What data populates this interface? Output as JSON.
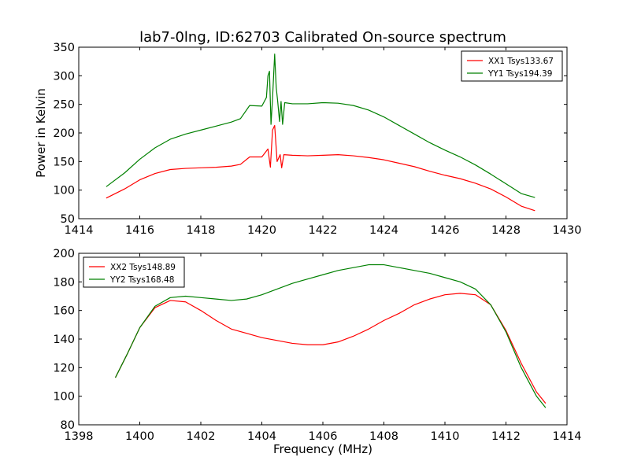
{
  "figure": {
    "title": "lab7-0lng, ID:62703 Calibrated On-source spectrum"
  },
  "chart_data": [
    {
      "type": "line",
      "xlabel": "",
      "ylabel": "Power in Kelvin",
      "xlim": [
        1414,
        1430
      ],
      "ylim": [
        50,
        350
      ],
      "xticks": [
        1414,
        1416,
        1418,
        1420,
        1422,
        1424,
        1426,
        1428,
        1430
      ],
      "yticks": [
        50,
        100,
        150,
        200,
        250,
        300,
        350
      ],
      "grid": false,
      "legend_position": "top-right",
      "series": [
        {
          "name": "XX1 Tsys133.67",
          "color": "#ff0000",
          "points": [
            [
              1414.9,
              86
            ],
            [
              1415.5,
              102
            ],
            [
              1416.0,
              118
            ],
            [
              1416.5,
              129
            ],
            [
              1417.0,
              136
            ],
            [
              1417.5,
              138
            ],
            [
              1418.0,
              139
            ],
            [
              1418.5,
              140
            ],
            [
              1419.0,
              142
            ],
            [
              1419.3,
              145
            ],
            [
              1419.6,
              158
            ],
            [
              1420.0,
              158
            ],
            [
              1420.2,
              172
            ],
            [
              1420.28,
              140
            ],
            [
              1420.35,
              205
            ],
            [
              1420.42,
              213
            ],
            [
              1420.5,
              150
            ],
            [
              1420.6,
              162
            ],
            [
              1420.65,
              139
            ],
            [
              1420.72,
              162
            ],
            [
              1421.0,
              161
            ],
            [
              1421.5,
              160
            ],
            [
              1422.0,
              161
            ],
            [
              1422.5,
              162
            ],
            [
              1423.0,
              160
            ],
            [
              1423.5,
              157
            ],
            [
              1424.0,
              153
            ],
            [
              1424.5,
              147
            ],
            [
              1425.0,
              141
            ],
            [
              1425.5,
              133
            ],
            [
              1426.0,
              126
            ],
            [
              1426.5,
              120
            ],
            [
              1427.0,
              112
            ],
            [
              1427.5,
              102
            ],
            [
              1428.0,
              88
            ],
            [
              1428.5,
              72
            ],
            [
              1428.95,
              64
            ]
          ]
        },
        {
          "name": "YY1 Tsys194.39",
          "color": "#008000",
          "points": [
            [
              1414.9,
              106
            ],
            [
              1415.5,
              130
            ],
            [
              1416.0,
              154
            ],
            [
              1416.5,
              174
            ],
            [
              1417.0,
              189
            ],
            [
              1417.5,
              198
            ],
            [
              1418.0,
              205
            ],
            [
              1418.5,
              212
            ],
            [
              1419.0,
              219
            ],
            [
              1419.3,
              225
            ],
            [
              1419.6,
              248
            ],
            [
              1420.0,
              247
            ],
            [
              1420.15,
              262
            ],
            [
              1420.2,
              300
            ],
            [
              1420.25,
              308
            ],
            [
              1420.3,
              215
            ],
            [
              1420.35,
              260
            ],
            [
              1420.42,
              338
            ],
            [
              1420.47,
              280
            ],
            [
              1420.52,
              255
            ],
            [
              1420.58,
              220
            ],
            [
              1420.63,
              255
            ],
            [
              1420.68,
              215
            ],
            [
              1420.75,
              253
            ],
            [
              1421.0,
              251
            ],
            [
              1421.5,
              251
            ],
            [
              1422.0,
              253
            ],
            [
              1422.5,
              252
            ],
            [
              1423.0,
              248
            ],
            [
              1423.5,
              240
            ],
            [
              1424.0,
              228
            ],
            [
              1424.5,
              213
            ],
            [
              1425.0,
              198
            ],
            [
              1425.5,
              183
            ],
            [
              1426.0,
              170
            ],
            [
              1426.5,
              158
            ],
            [
              1427.0,
              144
            ],
            [
              1427.5,
              128
            ],
            [
              1428.0,
              111
            ],
            [
              1428.5,
              94
            ],
            [
              1428.95,
              87
            ]
          ]
        }
      ]
    },
    {
      "type": "line",
      "xlabel": "Frequency (MHz)",
      "ylabel": "",
      "xlim": [
        1398,
        1414
      ],
      "ylim": [
        80,
        200
      ],
      "xticks": [
        1398,
        1400,
        1402,
        1404,
        1406,
        1408,
        1410,
        1412,
        1414
      ],
      "yticks": [
        80,
        100,
        120,
        140,
        160,
        180,
        200
      ],
      "grid": false,
      "legend_position": "top-left",
      "series": [
        {
          "name": "XX2 Tsys148.89",
          "color": "#ff0000",
          "points": [
            [
              1399.2,
              113
            ],
            [
              1399.6,
              130
            ],
            [
              1400.0,
              148
            ],
            [
              1400.5,
              162
            ],
            [
              1401.0,
              167
            ],
            [
              1401.5,
              166
            ],
            [
              1402.0,
              160
            ],
            [
              1402.5,
              153
            ],
            [
              1403.0,
              147
            ],
            [
              1403.5,
              144
            ],
            [
              1404.0,
              141
            ],
            [
              1404.5,
              139
            ],
            [
              1405.0,
              137
            ],
            [
              1405.5,
              136
            ],
            [
              1406.0,
              136
            ],
            [
              1406.5,
              138
            ],
            [
              1407.0,
              142
            ],
            [
              1407.5,
              147
            ],
            [
              1408.0,
              153
            ],
            [
              1408.5,
              158
            ],
            [
              1409.0,
              164
            ],
            [
              1409.5,
              168
            ],
            [
              1410.0,
              171
            ],
            [
              1410.5,
              172
            ],
            [
              1411.0,
              171
            ],
            [
              1411.5,
              164
            ],
            [
              1412.0,
              146
            ],
            [
              1412.5,
              123
            ],
            [
              1413.0,
              103
            ],
            [
              1413.3,
              95
            ]
          ]
        },
        {
          "name": "YY2 Tsys168.48",
          "color": "#008000",
          "points": [
            [
              1399.2,
              113
            ],
            [
              1399.6,
              130
            ],
            [
              1400.0,
              148
            ],
            [
              1400.5,
              163
            ],
            [
              1401.0,
              169
            ],
            [
              1401.5,
              170
            ],
            [
              1402.0,
              169
            ],
            [
              1402.5,
              168
            ],
            [
              1403.0,
              167
            ],
            [
              1403.5,
              168
            ],
            [
              1404.0,
              171
            ],
            [
              1404.5,
              175
            ],
            [
              1405.0,
              179
            ],
            [
              1405.5,
              182
            ],
            [
              1406.0,
              185
            ],
            [
              1406.5,
              188
            ],
            [
              1407.0,
              190
            ],
            [
              1407.5,
              192
            ],
            [
              1408.0,
              192
            ],
            [
              1408.5,
              190
            ],
            [
              1409.0,
              188
            ],
            [
              1409.5,
              186
            ],
            [
              1410.0,
              183
            ],
            [
              1410.5,
              180
            ],
            [
              1411.0,
              175
            ],
            [
              1411.5,
              164
            ],
            [
              1412.0,
              145
            ],
            [
              1412.5,
              120
            ],
            [
              1413.0,
              100
            ],
            [
              1413.3,
              92
            ]
          ]
        }
      ]
    }
  ]
}
